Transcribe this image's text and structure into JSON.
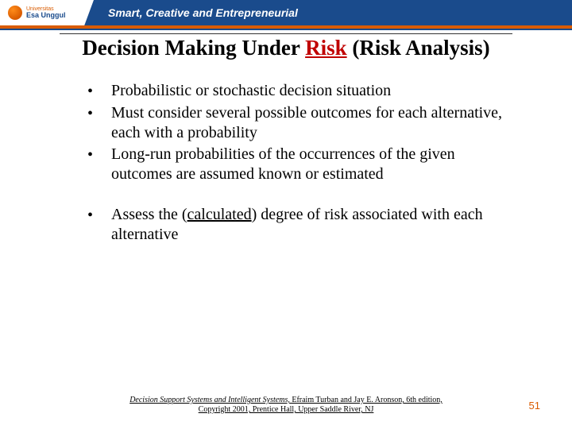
{
  "header": {
    "logo_top": "Universitas",
    "logo_main": "Esa Unggul",
    "tagline": "Smart, Creative and Entrepreneurial"
  },
  "title": {
    "pre": "Decision Making Under ",
    "risk": "Risk",
    "post": " (Risk Analysis)"
  },
  "bullets_a": [
    "Probabilistic or stochastic decision situation",
    "Must consider several possible outcomes for each alternative, each with a probability",
    "Long-run probabilities of the occurrences of the given outcomes are assumed known or estimated"
  ],
  "bullet_b": {
    "pre": "Assess the (",
    "underlined": "calculated",
    "post": ") degree of risk associated with each alternative"
  },
  "footer": {
    "book": "Decision Support Systems and Intelligent Systems,",
    "rest1": " Efraim Turban and Jay E. Aronson, 6th edition,",
    "rest2": "Copyright 2001, Prentice Hall, Upper Saddle River, NJ"
  },
  "page_number": "51"
}
